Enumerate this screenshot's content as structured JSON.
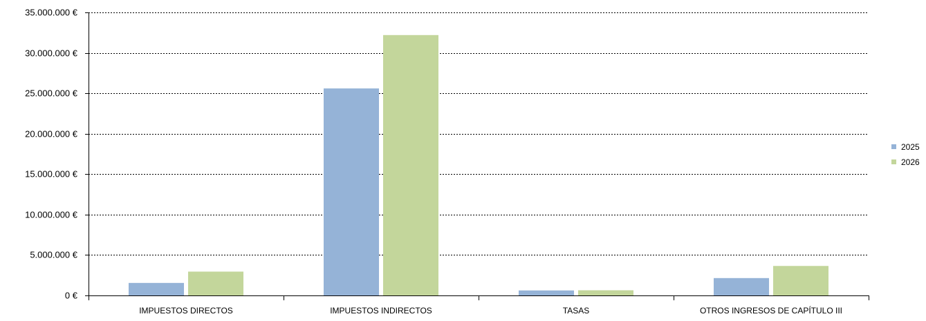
{
  "chart_data": {
    "type": "bar",
    "title": "",
    "xlabel": "",
    "ylabel": "",
    "categories": [
      "IMPUESTOS DIRECTOS",
      "IMPUESTOS INDIRECTOS",
      "TASAS",
      "OTROS INGRESOS DE CAPÍTULO III"
    ],
    "series": [
      {
        "name": "2025",
        "color": "#95b3d7",
        "values": [
          1550000,
          25600000,
          620000,
          2150000
        ]
      },
      {
        "name": "2026",
        "color": "#c3d69b",
        "values": [
          2950000,
          32200000,
          640000,
          3650000
        ]
      }
    ],
    "ylim": [
      0,
      35000000
    ],
    "y_ticks": [
      0,
      5000000,
      10000000,
      15000000,
      20000000,
      25000000,
      30000000,
      35000000
    ],
    "y_tick_labels": [
      "0 €",
      "5.000.000 €",
      "10.000.000 €",
      "15.000.000 €",
      "20.000.000 €",
      "25.000.000 €",
      "30.000.000 €",
      "35.000.000 €"
    ],
    "grid": true,
    "grid_style": "dashed",
    "legend_position": "right"
  }
}
